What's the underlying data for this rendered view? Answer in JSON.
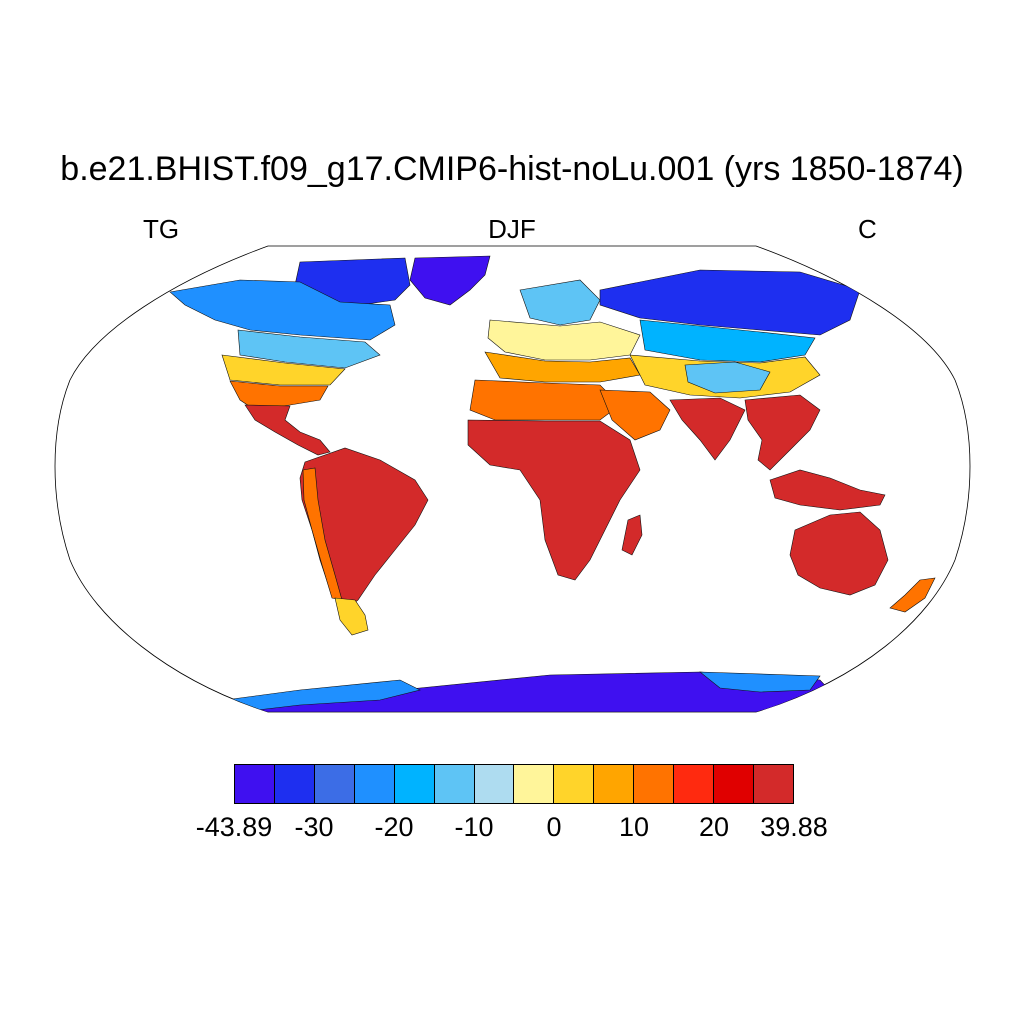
{
  "title": "b.e21.BHIST.f09_g17.CMIP6-hist-noLu.001 (yrs 1850-1874)",
  "variable": "TG",
  "season": "DJF",
  "units": "C",
  "colorbar": {
    "colors": [
      "#3f10f0",
      "#1e2ff0",
      "#3c6de6",
      "#1f90ff",
      "#00b3ff",
      "#5ec4f5",
      "#aedcf0",
      "#fff59a",
      "#ffd42a",
      "#ffa500",
      "#ff7300",
      "#ff2a0f",
      "#e00000",
      "#d32a2a"
    ],
    "labels": [
      "-43.89",
      "-30",
      "-20",
      "-10",
      "0",
      "10",
      "20",
      "39.88"
    ],
    "label_values": [
      -43.89,
      -30,
      -20,
      -10,
      0,
      10,
      20,
      39.88
    ]
  },
  "map": {
    "projection": "robinson",
    "regions": [
      {
        "name": "greenland",
        "color": "#3f10f0"
      },
      {
        "name": "canada-arctic",
        "color": "#1e2ff0"
      },
      {
        "name": "alaska-canada",
        "color": "#1f90ff"
      },
      {
        "name": "usa-north",
        "color": "#5ec4f5"
      },
      {
        "name": "usa-mid",
        "color": "#ffd42a"
      },
      {
        "name": "usa-south",
        "color": "#ff7300"
      },
      {
        "name": "mexico-central-america",
        "color": "#d32a2a"
      },
      {
        "name": "south-america",
        "color": "#d32a2a"
      },
      {
        "name": "andes",
        "color": "#ff7300"
      },
      {
        "name": "patagonia",
        "color": "#ffd42a"
      },
      {
        "name": "scandinavia",
        "color": "#5ec4f5"
      },
      {
        "name": "europe",
        "color": "#fff59a"
      },
      {
        "name": "mediterranean",
        "color": "#ffa500"
      },
      {
        "name": "siberia",
        "color": "#1e2ff0"
      },
      {
        "name": "central-asia",
        "color": "#00b3ff"
      },
      {
        "name": "mid-asia",
        "color": "#ffd42a"
      },
      {
        "name": "tibet",
        "color": "#5ec4f5"
      },
      {
        "name": "north-africa",
        "color": "#ff7300"
      },
      {
        "name": "africa",
        "color": "#d32a2a"
      },
      {
        "name": "madagascar",
        "color": "#d32a2a"
      },
      {
        "name": "arabia",
        "color": "#ff7300"
      },
      {
        "name": "india",
        "color": "#d32a2a"
      },
      {
        "name": "southeast-asia",
        "color": "#d32a2a"
      },
      {
        "name": "indonesia",
        "color": "#d32a2a"
      },
      {
        "name": "australia",
        "color": "#d32a2a"
      },
      {
        "name": "new-zealand",
        "color": "#ff7300"
      },
      {
        "name": "antarctica",
        "color": "#3f10f0"
      },
      {
        "name": "antarctica-coast",
        "color": "#1f90ff"
      }
    ]
  }
}
